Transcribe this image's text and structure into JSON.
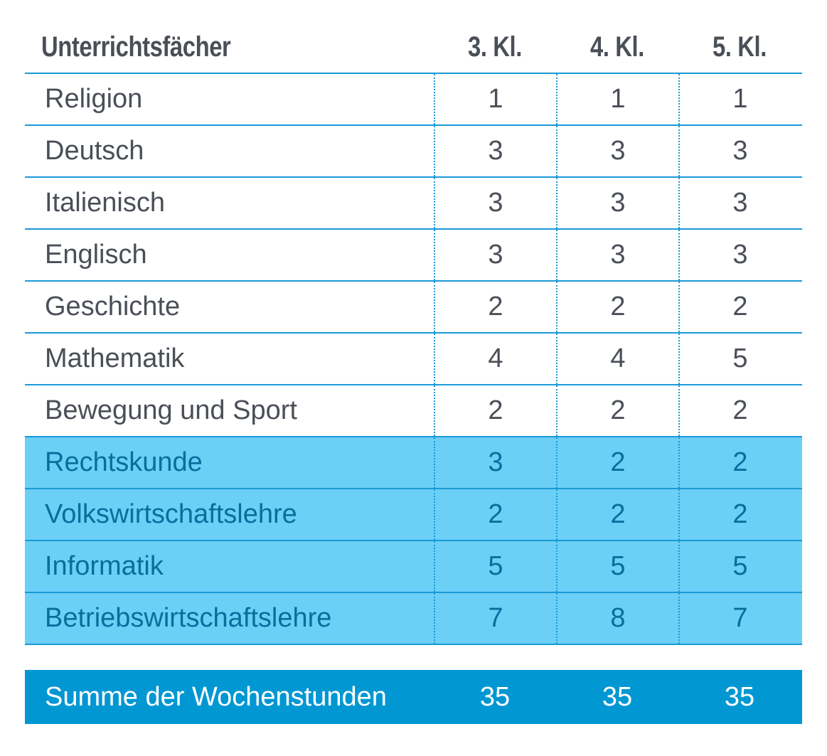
{
  "header": {
    "subject": "Unterrichtsfächer",
    "cols": [
      "3. Kl.",
      "4. Kl.",
      "5. Kl."
    ]
  },
  "rows": [
    {
      "subject": "Religion",
      "values": [
        "1",
        "1",
        "1"
      ],
      "highlight": false
    },
    {
      "subject": "Deutsch",
      "values": [
        "3",
        "3",
        "3"
      ],
      "highlight": false
    },
    {
      "subject": "Italienisch",
      "values": [
        "3",
        "3",
        "3"
      ],
      "highlight": false
    },
    {
      "subject": "Englisch",
      "values": [
        "3",
        "3",
        "3"
      ],
      "highlight": false
    },
    {
      "subject": "Geschichte",
      "values": [
        "2",
        "2",
        "2"
      ],
      "highlight": false
    },
    {
      "subject": "Mathematik",
      "values": [
        "4",
        "4",
        "5"
      ],
      "highlight": false
    },
    {
      "subject": "Bewegung und Sport",
      "values": [
        "2",
        "2",
        "2"
      ],
      "highlight": false
    },
    {
      "subject": "Rechtskunde",
      "values": [
        "3",
        "2",
        "2"
      ],
      "highlight": true
    },
    {
      "subject": "Volkswirtschaftslehre",
      "values": [
        "2",
        "2",
        "2"
      ],
      "highlight": true
    },
    {
      "subject": "Informatik",
      "values": [
        "5",
        "5",
        "5"
      ],
      "highlight": true
    },
    {
      "subject": "Betriebswirtschaftslehre",
      "values": [
        "7",
        "8",
        "7"
      ],
      "highlight": true
    }
  ],
  "sum": {
    "label": "Summe der Wochenstunden",
    "values": [
      "35",
      "35",
      "35"
    ]
  },
  "colors": {
    "line": "#1a9ad6",
    "highlight_bg": "#6ccff6",
    "highlight_text": "#0a6e9c",
    "sum_bg": "#0097d3",
    "text": "#4a4f57"
  }
}
